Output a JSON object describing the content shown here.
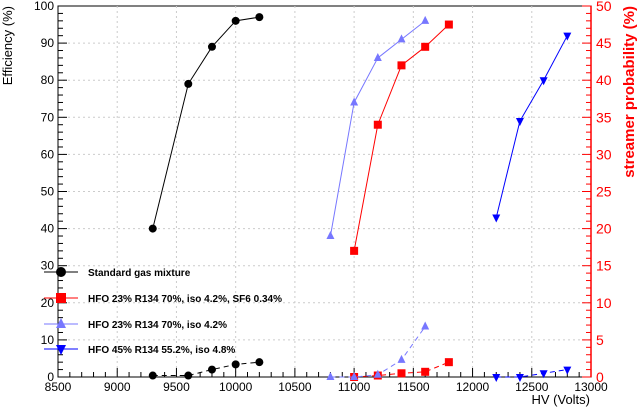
{
  "chart_data": {
    "type": "scatter",
    "xlabel": "HV (Volts)",
    "ylabel": "Efficiency (%)",
    "y2label": "streamer probability (%)",
    "xlim": [
      8500,
      13000
    ],
    "ylim": [
      0,
      100
    ],
    "y2lim": [
      0,
      50
    ],
    "xticks": [
      8500,
      9000,
      9500,
      10000,
      10500,
      11000,
      11500,
      12000,
      12500,
      13000
    ],
    "yticks": [
      0,
      10,
      20,
      30,
      40,
      50,
      60,
      70,
      80,
      90,
      100
    ],
    "y2ticks": [
      0,
      5,
      10,
      15,
      20,
      25,
      30,
      35,
      40,
      45,
      50
    ],
    "colors": {
      "left_axis": "#000000",
      "right_axis": "#ff0000"
    },
    "legend": {
      "placement": "lower-left",
      "entries": [
        "Standard gas mixture",
        "HFO 23% R134 70%, iso 4.2%, SF6 0.34%",
        "HFO 23% R134 70%, iso 4.2%",
        "HFO 45% R134 55.2%, iso 4.8%"
      ]
    },
    "series": [
      {
        "name": "Standard gas mixture",
        "color": "#000000",
        "marker": "circle",
        "efficiency": {
          "x": [
            9300,
            9600,
            9800,
            10000,
            10200
          ],
          "y": [
            40,
            79,
            89,
            96,
            97
          ]
        },
        "streamer": {
          "x": [
            9300,
            9600,
            9800,
            10000,
            10200
          ],
          "y": [
            0.2,
            0.2,
            1,
            1.7,
            2
          ]
        }
      },
      {
        "name": "HFO 23% R134 70%, iso 4.2%, SF6 0.34%",
        "color": "#ff0000",
        "marker": "square",
        "efficiency": {
          "x": [
            11000,
            11200,
            11400,
            11600,
            11800
          ],
          "y": [
            34,
            68,
            84,
            89,
            95
          ]
        },
        "streamer": {
          "x": [
            11000,
            11200,
            11400,
            11600,
            11800
          ],
          "y": [
            0,
            0.2,
            0.5,
            0.7,
            2
          ]
        }
      },
      {
        "name": "HFO 23% R134 70%, iso 4.2%",
        "color": "#7777ff",
        "marker": "triangle-up",
        "efficiency": {
          "x": [
            10800,
            11000,
            11200,
            11400,
            11600
          ],
          "y": [
            38,
            74,
            86,
            91,
            96
          ]
        },
        "streamer": {
          "x": [
            10800,
            11000,
            11200,
            11400,
            11600
          ],
          "y": [
            0,
            0,
            0.3,
            2.3,
            6.8
          ]
        }
      },
      {
        "name": "HFO 45% R134 55.2%, iso 4.8%",
        "color": "#0000ff",
        "marker": "triangle-down",
        "efficiency": {
          "x": [
            12200,
            12400,
            12600,
            12800
          ],
          "y": [
            43,
            69,
            80,
            92
          ]
        },
        "streamer": {
          "x": [
            12200,
            12400,
            12600,
            12800
          ],
          "y": [
            0,
            0,
            0.5,
            1
          ]
        }
      }
    ]
  }
}
